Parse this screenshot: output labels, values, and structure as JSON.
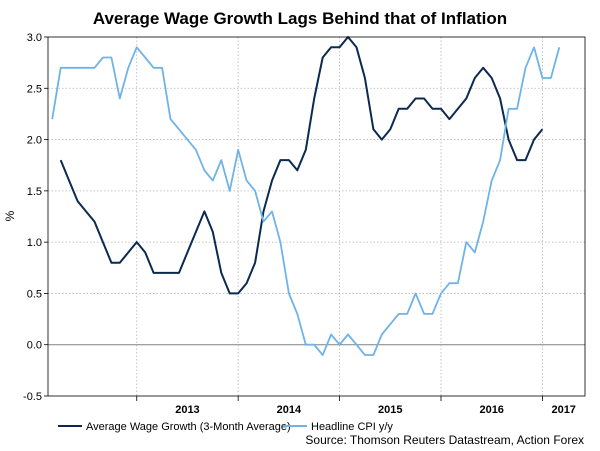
{
  "chart_data": {
    "type": "line",
    "title": "Average Wage Growth Lags Behind that of Inflation",
    "ylabel": "%",
    "xlabel": "",
    "ylim": [
      -0.5,
      3.0
    ],
    "yticks": [
      "3.0",
      "2.5",
      "2.0",
      "1.5",
      "1.0",
      "0.5",
      "0.0",
      "-0.5"
    ],
    "xticks": [
      "2013",
      "2014",
      "2015",
      "2016",
      "2017"
    ],
    "grid": true,
    "legend_position": "bottom",
    "source": "Source: Thomson Reuters Datastream, Action Forex",
    "series": [
      {
        "name": "Average Wage Growth (3-Month Average)",
        "color": "#0b2a4f",
        "points": [
          [
            "2012-04",
            1.8
          ],
          [
            "2012-05",
            1.6
          ],
          [
            "2012-06",
            1.4
          ],
          [
            "2012-07",
            1.3
          ],
          [
            "2012-08",
            1.2
          ],
          [
            "2012-09",
            1.0
          ],
          [
            "2012-10",
            0.8
          ],
          [
            "2012-11",
            0.8
          ],
          [
            "2012-12",
            0.9
          ],
          [
            "2013-01",
            1.0
          ],
          [
            "2013-02",
            0.9
          ],
          [
            "2013-03",
            0.7
          ],
          [
            "2013-04",
            0.7
          ],
          [
            "2013-05",
            0.7
          ],
          [
            "2013-06",
            0.7
          ],
          [
            "2013-07",
            0.9
          ],
          [
            "2013-08",
            1.1
          ],
          [
            "2013-09",
            1.3
          ],
          [
            "2013-10",
            1.1
          ],
          [
            "2013-11",
            0.7
          ],
          [
            "2013-12",
            0.5
          ],
          [
            "2014-01",
            0.5
          ],
          [
            "2014-02",
            0.6
          ],
          [
            "2014-03",
            0.8
          ],
          [
            "2014-04",
            1.3
          ],
          [
            "2014-05",
            1.6
          ],
          [
            "2014-06",
            1.8
          ],
          [
            "2014-07",
            1.8
          ],
          [
            "2014-08",
            1.7
          ],
          [
            "2014-09",
            1.9
          ],
          [
            "2014-10",
            2.4
          ],
          [
            "2014-11",
            2.8
          ],
          [
            "2014-12",
            2.9
          ],
          [
            "2015-01",
            2.9
          ],
          [
            "2015-02",
            3.0
          ],
          [
            "2015-03",
            2.9
          ],
          [
            "2015-04",
            2.6
          ],
          [
            "2015-05",
            2.1
          ],
          [
            "2015-06",
            2.0
          ],
          [
            "2015-07",
            2.1
          ],
          [
            "2015-08",
            2.3
          ],
          [
            "2015-09",
            2.3
          ],
          [
            "2015-10",
            2.4
          ],
          [
            "2015-11",
            2.4
          ],
          [
            "2015-12",
            2.3
          ],
          [
            "2016-01",
            2.3
          ],
          [
            "2016-02",
            2.2
          ],
          [
            "2016-03",
            2.3
          ],
          [
            "2016-04",
            2.4
          ],
          [
            "2016-05",
            2.6
          ],
          [
            "2016-06",
            2.7
          ],
          [
            "2016-07",
            2.6
          ],
          [
            "2016-08",
            2.4
          ],
          [
            "2016-09",
            2.0
          ],
          [
            "2016-10",
            1.8
          ],
          [
            "2016-11",
            1.8
          ],
          [
            "2016-12",
            2.0
          ],
          [
            "2017-01",
            2.1
          ]
        ]
      },
      {
        "name": "Headline CPI y/y",
        "color": "#6fb3e8",
        "points": [
          [
            "2012-03",
            2.2
          ],
          [
            "2012-04",
            2.7
          ],
          [
            "2012-05",
            2.7
          ],
          [
            "2012-06",
            2.7
          ],
          [
            "2012-07",
            2.7
          ],
          [
            "2012-08",
            2.7
          ],
          [
            "2012-09",
            2.8
          ],
          [
            "2012-10",
            2.8
          ],
          [
            "2012-11",
            2.4
          ],
          [
            "2012-12",
            2.7
          ],
          [
            "2013-01",
            2.9
          ],
          [
            "2013-02",
            2.8
          ],
          [
            "2013-03",
            2.7
          ],
          [
            "2013-04",
            2.7
          ],
          [
            "2013-05",
            2.2
          ],
          [
            "2013-06",
            2.1
          ],
          [
            "2013-07",
            2.0
          ],
          [
            "2013-08",
            1.9
          ],
          [
            "2013-09",
            1.7
          ],
          [
            "2013-10",
            1.6
          ],
          [
            "2013-11",
            1.8
          ],
          [
            "2013-12",
            1.5
          ],
          [
            "2014-01",
            1.9
          ],
          [
            "2014-02",
            1.6
          ],
          [
            "2014-03",
            1.5
          ],
          [
            "2014-04",
            1.2
          ],
          [
            "2014-05",
            1.3
          ],
          [
            "2014-06",
            1.0
          ],
          [
            "2014-07",
            0.5
          ],
          [
            "2014-08",
            0.3
          ],
          [
            "2014-09",
            0.0
          ],
          [
            "2014-10",
            0.0
          ],
          [
            "2014-11",
            -0.1
          ],
          [
            "2014-12",
            0.1
          ],
          [
            "2015-01",
            0.0
          ],
          [
            "2015-02",
            0.1
          ],
          [
            "2015-03",
            0.0
          ],
          [
            "2015-04",
            -0.1
          ],
          [
            "2015-05",
            -0.1
          ],
          [
            "2015-06",
            0.1
          ],
          [
            "2015-07",
            0.2
          ],
          [
            "2015-08",
            0.3
          ],
          [
            "2015-09",
            0.3
          ],
          [
            "2015-10",
            0.5
          ],
          [
            "2015-11",
            0.3
          ],
          [
            "2015-12",
            0.3
          ],
          [
            "2016-01",
            0.5
          ],
          [
            "2016-02",
            0.6
          ],
          [
            "2016-03",
            0.6
          ],
          [
            "2016-04",
            1.0
          ],
          [
            "2016-05",
            0.9
          ],
          [
            "2016-06",
            1.2
          ],
          [
            "2016-07",
            1.6
          ],
          [
            "2016-08",
            1.8
          ],
          [
            "2016-09",
            2.3
          ],
          [
            "2016-10",
            2.3
          ],
          [
            "2016-11",
            2.7
          ],
          [
            "2016-12",
            2.9
          ],
          [
            "2017-01",
            2.6
          ],
          [
            "2017-02",
            2.6
          ],
          [
            "2017-03",
            2.9
          ]
        ]
      }
    ]
  }
}
